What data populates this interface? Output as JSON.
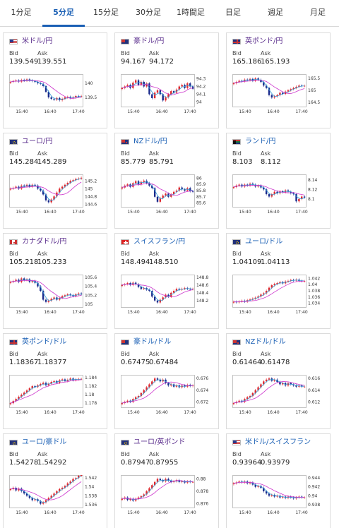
{
  "tabs": [
    "1分足",
    "5分足",
    "15分足",
    "30分足",
    "1時間足",
    "日足",
    "週足",
    "月足"
  ],
  "active_tab": 1,
  "labels": {
    "bid": "Bid",
    "ask": "Ask"
  },
  "colors": {
    "accent": "#1a5fb4",
    "up": "#e0282e",
    "down": "#1a2a8c",
    "ma_fast": "#3aa0d8",
    "ma_slow": "#cc33cc"
  },
  "cards": [
    {
      "name": "米ドル/円",
      "flag": "us",
      "bid": "139.549",
      "ask": "139.551",
      "yticks": [
        "140",
        "139.5"
      ],
      "xticks": [
        "15:40",
        "16:40",
        "17:40"
      ],
      "ymin": 139.2,
      "ymax": 140.3,
      "series": [
        140.05,
        140.08,
        140.1,
        140.06,
        140.12,
        140.09,
        140.14,
        140.1,
        140.08,
        140.05,
        140.0,
        139.98,
        139.9,
        139.7,
        139.5,
        139.45,
        139.42,
        139.48,
        139.4,
        139.45,
        139.5,
        139.52,
        139.48,
        139.5,
        139.55,
        139.53,
        139.55
      ]
    },
    {
      "name": "豪ドル/円",
      "flag": "au",
      "bid": "94.167",
      "ask": "94.172",
      "yticks": [
        "94.3",
        "94.2",
        "94.1",
        "94"
      ],
      "xticks": [
        "15:40",
        "16:40",
        "17:40"
      ],
      "ymin": 93.95,
      "ymax": 94.35,
      "series": [
        94.18,
        94.2,
        94.22,
        94.18,
        94.25,
        94.28,
        94.22,
        94.26,
        94.2,
        94.24,
        94.1,
        94.05,
        94.12,
        94.15,
        94.1,
        94.02,
        94.06,
        94.1,
        94.14,
        94.12,
        94.16,
        94.2,
        94.22,
        94.18,
        94.24,
        94.2,
        94.17
      ]
    },
    {
      "name": "英ポンド/円",
      "flag": "gb",
      "bid": "165.186",
      "ask": "165.193",
      "yticks": [
        "165.5",
        "165",
        "164.5"
      ],
      "xticks": [
        "15:40",
        "16:40",
        "17:40"
      ],
      "ymin": 164.35,
      "ymax": 165.65,
      "series": [
        165.3,
        165.35,
        165.4,
        165.38,
        165.45,
        165.42,
        165.48,
        165.4,
        165.5,
        165.44,
        165.35,
        165.2,
        165.1,
        164.8,
        164.7,
        164.75,
        164.8,
        164.9,
        164.85,
        164.95,
        165.0,
        165.05,
        165.1,
        165.15,
        165.2,
        165.18,
        165.19
      ]
    },
    {
      "name": "ユーロ/円",
      "flag": "eu",
      "bid": "145.284",
      "ask": "145.289",
      "yticks": [
        "145.2",
        "145",
        "144.8",
        "144.6"
      ],
      "xticks": [
        "15:40",
        "16:40",
        "17:40"
      ],
      "ymin": 144.55,
      "ymax": 145.35,
      "series": [
        145.0,
        145.02,
        145.05,
        145.0,
        145.08,
        145.06,
        145.1,
        145.05,
        145.1,
        145.08,
        145.0,
        144.95,
        144.85,
        144.7,
        144.65,
        144.72,
        144.8,
        144.9,
        145.0,
        145.05,
        145.1,
        145.15,
        145.2,
        145.22,
        145.25,
        145.26,
        145.28
      ]
    },
    {
      "name": "NZドル/円",
      "flag": "nz",
      "bid": "85.779",
      "ask": "85.791",
      "yticks": [
        "86",
        "85.9",
        "85.8",
        "85.7",
        "85.6"
      ],
      "xticks": [
        "15:40",
        "16:40",
        "17:40"
      ],
      "ymin": 85.55,
      "ymax": 86.05,
      "series": [
        85.85,
        85.88,
        85.9,
        85.86,
        85.92,
        85.95,
        85.9,
        85.94,
        85.96,
        85.92,
        85.88,
        85.84,
        85.7,
        85.62,
        85.68,
        85.72,
        85.75,
        85.7,
        85.74,
        85.78,
        85.8,
        85.85,
        85.82,
        85.8,
        85.84,
        85.79,
        85.78
      ]
    },
    {
      "name": "ランド/円",
      "flag": "za",
      "bid": "8.103",
      "ask": "8.112",
      "yticks": [
        "8.14",
        "8.12",
        "8.1"
      ],
      "xticks": [
        "15:40",
        "16:40",
        "17:40"
      ],
      "ymin": 8.085,
      "ymax": 8.15,
      "series": [
        8.125,
        8.128,
        8.13,
        8.126,
        8.13,
        8.128,
        8.132,
        8.13,
        8.126,
        8.128,
        8.124,
        8.12,
        8.11,
        8.105,
        8.11,
        8.115,
        8.112,
        8.116,
        8.114,
        8.118,
        8.115,
        8.112,
        8.11,
        8.095,
        8.1,
        8.105,
        8.103
      ]
    },
    {
      "name": "カナダドル/円",
      "flag": "ca",
      "bid": "105.218",
      "ask": "105.233",
      "yticks": [
        "105.6",
        "105.4",
        "105.2",
        "105"
      ],
      "xticks": [
        "15:40",
        "16:40",
        "17:40"
      ],
      "ymin": 104.95,
      "ymax": 105.65,
      "series": [
        105.5,
        105.52,
        105.55,
        105.5,
        105.58,
        105.54,
        105.56,
        105.5,
        105.52,
        105.48,
        105.4,
        105.3,
        105.1,
        105.05,
        105.08,
        105.12,
        105.15,
        105.1,
        105.14,
        105.18,
        105.2,
        105.22,
        105.2,
        105.18,
        105.22,
        105.24,
        105.22
      ]
    },
    {
      "name": "スイスフラン/円",
      "flag": "ch",
      "bid": "148.494",
      "ask": "148.510",
      "yticks": [
        "148.8",
        "148.6",
        "148.4",
        "148.2"
      ],
      "xticks": [
        "15:40",
        "16:40",
        "17:40"
      ],
      "ymin": 148.05,
      "ymax": 148.85,
      "series": [
        148.6,
        148.62,
        148.65,
        148.6,
        148.66,
        148.62,
        148.55,
        148.5,
        148.52,
        148.48,
        148.45,
        148.3,
        148.2,
        148.15,
        148.22,
        148.28,
        148.35,
        148.3,
        148.4,
        148.45,
        148.5,
        148.48,
        148.5,
        148.52,
        148.5,
        148.49,
        148.5
      ]
    },
    {
      "name": "ユーロ/ドル",
      "flag": "eu",
      "bid": "1.04109",
      "ask": "1.04113",
      "yticks": [
        "1.042",
        "1.04",
        "1.038",
        "1.036",
        "1.034"
      ],
      "xticks": [
        "15:40",
        "16:40",
        "17:40"
      ],
      "ymin": 1.033,
      "ymax": 1.043,
      "series": [
        1.0345,
        1.0343,
        1.0346,
        1.0348,
        1.0345,
        1.035,
        1.0352,
        1.0355,
        1.0358,
        1.0362,
        1.0368,
        1.0372,
        1.038,
        1.039,
        1.0398,
        1.0402,
        1.0405,
        1.0408,
        1.0404,
        1.041,
        1.0412,
        1.0415,
        1.0413,
        1.0416,
        1.0412,
        1.0411,
        1.0411
      ]
    },
    {
      "name": "英ポンド/ドル",
      "flag": "gb",
      "bid": "1.18367",
      "ask": "1.18377",
      "yticks": [
        "1.184",
        "1.182",
        "1.18",
        "1.178"
      ],
      "xticks": [
        "15:40",
        "16:40",
        "17:40"
      ],
      "ymin": 1.1772,
      "ymax": 1.1845,
      "series": [
        1.178,
        1.1785,
        1.179,
        1.1795,
        1.18,
        1.1805,
        1.181,
        1.1815,
        1.182,
        1.1818,
        1.1822,
        1.1825,
        1.1828,
        1.1822,
        1.1826,
        1.183,
        1.1832,
        1.1828,
        1.1834,
        1.1836,
        1.1832,
        1.1835,
        1.1838,
        1.1834,
        1.1836,
        1.1837,
        1.1837
      ]
    },
    {
      "name": "豪ドル/ドル",
      "flag": "au",
      "bid": "0.67475",
      "ask": "0.67484",
      "yticks": [
        "0.676",
        "0.674",
        "0.672"
      ],
      "xticks": [
        "15:40",
        "16:40",
        "17:40"
      ],
      "ymin": 0.6712,
      "ymax": 0.6765,
      "series": [
        0.6718,
        0.672,
        0.6722,
        0.672,
        0.6725,
        0.6728,
        0.673,
        0.6735,
        0.674,
        0.6745,
        0.675,
        0.6755,
        0.676,
        0.6758,
        0.6755,
        0.6758,
        0.6752,
        0.6748,
        0.675,
        0.6746,
        0.6748,
        0.6745,
        0.6748,
        0.6746,
        0.6749,
        0.6747,
        0.6748
      ]
    },
    {
      "name": "NZドル/ドル",
      "flag": "nz",
      "bid": "0.61464",
      "ask": "0.61478",
      "yticks": [
        "0.616",
        "0.614",
        "0.612"
      ],
      "xticks": [
        "15:40",
        "16:40",
        "17:40"
      ],
      "ymin": 0.6112,
      "ymax": 0.6165,
      "series": [
        0.6118,
        0.612,
        0.6122,
        0.612,
        0.6125,
        0.6128,
        0.613,
        0.6135,
        0.614,
        0.6145,
        0.615,
        0.6155,
        0.6158,
        0.616,
        0.6156,
        0.6158,
        0.6154,
        0.615,
        0.6152,
        0.6148,
        0.6152,
        0.615,
        0.6148,
        0.6146,
        0.6148,
        0.6146,
        0.6146
      ]
    },
    {
      "name": "ユーロ/豪ドル",
      "flag": "eu",
      "bid": "1.54278",
      "ask": "1.54292",
      "yticks": [
        "1.542",
        "1.54",
        "1.538",
        "1.536"
      ],
      "xticks": [
        "15:40",
        "16:40",
        "17:40"
      ],
      "ymin": 1.5355,
      "ymax": 1.5425,
      "series": [
        1.5395,
        1.5398,
        1.5392,
        1.5396,
        1.539,
        1.5385,
        1.538,
        1.5375,
        1.537,
        1.5372,
        1.5368,
        1.5362,
        1.5365,
        1.537,
        1.5375,
        1.538,
        1.5385,
        1.539,
        1.5395,
        1.5398,
        1.5402,
        1.5408,
        1.5412,
        1.5418,
        1.542,
        1.5425,
        1.5428
      ]
    },
    {
      "name": "ユーロ/英ポンド",
      "flag": "eu",
      "bid": "0.87947",
      "ask": "0.87955",
      "yticks": [
        "0.88",
        "0.878",
        "0.876"
      ],
      "xticks": [
        "15:40",
        "16:40",
        "17:40"
      ],
      "ymin": 0.8755,
      "ymax": 0.8805,
      "series": [
        0.8768,
        0.877,
        0.8766,
        0.8768,
        0.8765,
        0.8768,
        0.877,
        0.8772,
        0.8775,
        0.878,
        0.8785,
        0.879,
        0.8795,
        0.88,
        0.8798,
        0.8796,
        0.88,
        0.8797,
        0.8795,
        0.8796,
        0.8798,
        0.8795,
        0.8796,
        0.8794,
        0.8796,
        0.8795,
        0.8795
      ]
    },
    {
      "name": "米ドル/スイスフラン",
      "flag": "us",
      "bid": "0.93964",
      "ask": "0.93979",
      "yticks": [
        "0.944",
        "0.942",
        "0.94",
        "0.938"
      ],
      "xticks": [
        "15:40",
        "16:40",
        "17:40"
      ],
      "ymin": 0.9375,
      "ymax": 0.9445,
      "series": [
        0.9428,
        0.943,
        0.9432,
        0.943,
        0.9432,
        0.9428,
        0.943,
        0.9425,
        0.942,
        0.9422,
        0.9418,
        0.941,
        0.9405,
        0.94,
        0.9402,
        0.9398,
        0.94,
        0.9396,
        0.9398,
        0.9395,
        0.9398,
        0.9396,
        0.9394,
        0.9396,
        0.9398,
        0.9396,
        0.9396
      ]
    }
  ]
}
